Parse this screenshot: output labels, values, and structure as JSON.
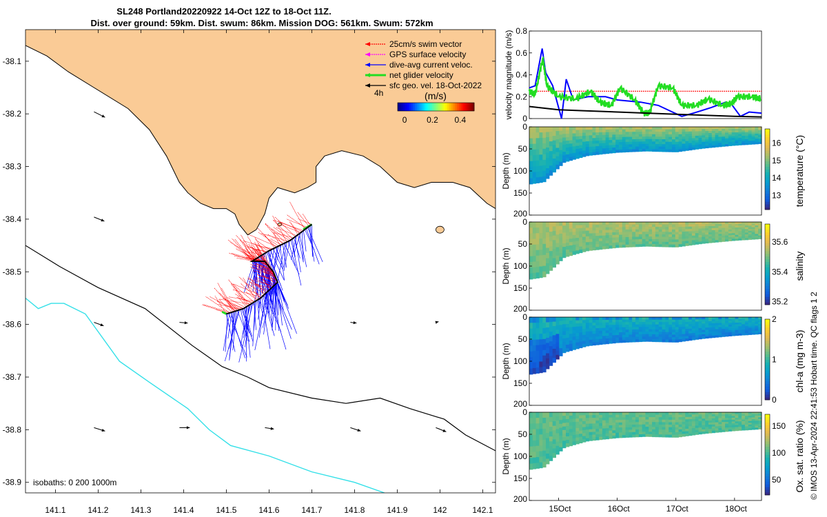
{
  "title": {
    "line1": "SL248 Portland20220922 14-Oct 12Z to 18-Oct 11Z.",
    "line2": "Dist. over ground: 59km. Dist. swum: 86km. Mission DOG: 561km. Swum: 572km"
  },
  "credit": "© IMOS 13-Apr-2024 22:41:53 Hobart time. QC flags 1  2",
  "colors": {
    "land": "#FACB96",
    "coast": "#000000",
    "isobath_200": "#000000",
    "isobath_1000": "#33E0E8",
    "swim_vector": "#FF0000",
    "gps_velocity": "#FF00FF",
    "dive_avg_current": "#0000FF",
    "net_glider": "#22DD22",
    "sfc_geo": "#000000"
  },
  "chart_data": [
    {
      "type": "map",
      "xlim": [
        141.03,
        142.13
      ],
      "ylim": [
        -38.92,
        -38.04
      ],
      "x_ticks": [
        141.1,
        141.2,
        141.3,
        141.4,
        141.5,
        141.6,
        141.7,
        141.8,
        141.9,
        142,
        142.1
      ],
      "x_tick_labels": [
        "141.1",
        "141.2",
        "141.3",
        "141.4",
        "141.5",
        "141.6",
        "141.7",
        "141.8",
        "141.9",
        "142",
        "142.1"
      ],
      "y_ticks": [
        -38.1,
        -38.2,
        -38.3,
        -38.4,
        -38.5,
        -38.6,
        -38.7,
        -38.8,
        -38.9
      ],
      "y_tick_labels": [
        "-38.1",
        "-38.2",
        "-38.3",
        "-38.4",
        "-38.5",
        "-38.6",
        "-38.7",
        "-38.8",
        "-38.9"
      ],
      "isobath_label": "isobaths: 0   200  1000m",
      "legend": [
        {
          "label": "25cm/s swim vector",
          "color": "#FF0000",
          "style": "dotted"
        },
        {
          "label": "GPS surface velocity",
          "color": "#FF00FF",
          "style": "dotted"
        },
        {
          "label": "dive-avg current veloc.",
          "color": "#0000FF",
          "style": "solid"
        },
        {
          "label": "net glider velocity",
          "color": "#22DD22",
          "style": "thick"
        },
        {
          "label": "sfc geo. vel. 18-Oct-2022",
          "color": "#000000",
          "style": "solid"
        }
      ],
      "time_step_label": "4h",
      "colorbar": {
        "label": "(m/s)",
        "ticks": [
          "0",
          "0.2",
          "0.4"
        ],
        "range": [
          -0.05,
          0.5
        ]
      },
      "coastline": [
        [
          141.03,
          -38.07
        ],
        [
          141.08,
          -38.09
        ],
        [
          141.13,
          -38.12
        ],
        [
          141.19,
          -38.15
        ],
        [
          141.27,
          -38.19
        ],
        [
          141.32,
          -38.23
        ],
        [
          141.36,
          -38.28
        ],
        [
          141.39,
          -38.33
        ],
        [
          141.41,
          -38.35
        ],
        [
          141.44,
          -38.37
        ],
        [
          141.47,
          -38.38
        ],
        [
          141.5,
          -38.38
        ],
        [
          141.52,
          -38.39
        ],
        [
          141.53,
          -38.41
        ],
        [
          141.55,
          -38.43
        ],
        [
          141.57,
          -38.42
        ],
        [
          141.59,
          -38.39
        ],
        [
          141.6,
          -38.36
        ],
        [
          141.62,
          -38.34
        ],
        [
          141.66,
          -38.35
        ],
        [
          141.69,
          -38.34
        ],
        [
          141.71,
          -38.33
        ],
        [
          141.71,
          -38.3
        ],
        [
          141.73,
          -38.28
        ],
        [
          141.77,
          -38.27
        ],
        [
          141.82,
          -38.28
        ],
        [
          141.86,
          -38.3
        ],
        [
          141.9,
          -38.33
        ],
        [
          141.94,
          -38.34
        ],
        [
          141.98,
          -38.33
        ],
        [
          142.03,
          -38.33
        ],
        [
          142.07,
          -38.34
        ],
        [
          142.11,
          -38.37
        ],
        [
          142.13,
          -38.38
        ]
      ],
      "isobath_200": [
        [
          141.03,
          -38.45
        ],
        [
          141.11,
          -38.49
        ],
        [
          141.2,
          -38.53
        ],
        [
          141.31,
          -38.57
        ],
        [
          141.42,
          -38.64
        ],
        [
          141.49,
          -38.68
        ],
        [
          141.55,
          -38.7
        ],
        [
          141.6,
          -38.72
        ],
        [
          141.7,
          -38.74
        ],
        [
          141.78,
          -38.75
        ],
        [
          141.86,
          -38.74
        ],
        [
          141.93,
          -38.76
        ],
        [
          142.01,
          -38.78
        ],
        [
          142.06,
          -38.81
        ],
        [
          142.13,
          -38.84
        ]
      ],
      "isobath_1000": [
        [
          141.03,
          -38.55
        ],
        [
          141.06,
          -38.57
        ],
        [
          141.09,
          -38.56
        ],
        [
          141.12,
          -38.56
        ],
        [
          141.17,
          -38.58
        ],
        [
          141.25,
          -38.67
        ],
        [
          141.32,
          -38.71
        ],
        [
          141.41,
          -38.76
        ],
        [
          141.46,
          -38.8
        ],
        [
          141.51,
          -38.83
        ],
        [
          141.6,
          -38.85
        ],
        [
          141.7,
          -38.88
        ],
        [
          141.8,
          -38.9
        ],
        [
          141.87,
          -38.92
        ]
      ],
      "glider_track": [
        [
          141.7,
          -38.41
        ],
        [
          141.65,
          -38.44
        ],
        [
          141.6,
          -38.46
        ],
        [
          141.56,
          -38.48
        ],
        [
          141.59,
          -38.48
        ],
        [
          141.61,
          -38.5
        ],
        [
          141.62,
          -38.52
        ],
        [
          141.58,
          -38.55
        ],
        [
          141.54,
          -38.57
        ],
        [
          141.5,
          -38.58
        ]
      ],
      "geo_vectors": [
        {
          "lon": 141.2,
          "lat": -38.2,
          "u": 0.16,
          "v": -0.08
        },
        {
          "lon": 141.2,
          "lat": -38.4,
          "u": 0.15,
          "v": -0.06
        },
        {
          "lon": 141.2,
          "lat": -38.6,
          "u": 0.14,
          "v": -0.05
        },
        {
          "lon": 141.4,
          "lat": -38.6,
          "u": 0.12,
          "v": -0.01
        },
        {
          "lon": 141.8,
          "lat": -38.6,
          "u": 0.09,
          "v": -0.01
        },
        {
          "lon": 142.0,
          "lat": -38.6,
          "u": 0.04,
          "v": 0.01
        },
        {
          "lon": 141.2,
          "lat": -38.8,
          "u": 0.16,
          "v": -0.05
        },
        {
          "lon": 141.4,
          "lat": -38.8,
          "u": 0.15,
          "v": 0.0
        },
        {
          "lon": 141.6,
          "lat": -38.8,
          "u": 0.13,
          "v": -0.02
        },
        {
          "lon": 141.8,
          "lat": -38.8,
          "u": 0.15,
          "v": -0.05
        },
        {
          "lon": 142.0,
          "lat": -38.8,
          "u": 0.15,
          "v": -0.06
        }
      ]
    },
    {
      "type": "line",
      "ylabel": "velocity magnitude (m/s)",
      "ylim": [
        0,
        0.8
      ],
      "y_tick_labels": [
        "0",
        "0.2",
        "0.4",
        "0.6",
        "0.8"
      ],
      "xlim": [
        14.5,
        18.46
      ],
      "series": [
        {
          "color": "#FF0000",
          "values": [
            [
              14.5,
              0.25
            ],
            [
              18.46,
              0.25
            ]
          ]
        },
        {
          "color": "#0000FF",
          "values": [
            [
              14.5,
              0.28
            ],
            [
              14.6,
              0.3
            ],
            [
              14.72,
              0.64
            ],
            [
              14.78,
              0.42
            ],
            [
              14.9,
              0.3
            ],
            [
              15.05,
              0.0
            ],
            [
              15.13,
              0.36
            ],
            [
              15.25,
              0.17
            ],
            [
              15.5,
              0.2
            ],
            [
              15.8,
              0.2
            ],
            [
              16.0,
              0.17
            ],
            [
              16.4,
              0.15
            ],
            [
              16.7,
              0.12
            ],
            [
              16.9,
              0.07
            ],
            [
              17.1,
              0.02
            ],
            [
              17.3,
              0.05
            ],
            [
              17.6,
              0.1
            ],
            [
              17.85,
              0.15
            ],
            [
              17.95,
              0.13
            ],
            [
              18.1,
              0.02
            ],
            [
              18.25,
              0.06
            ],
            [
              18.46,
              0.05
            ]
          ]
        },
        {
          "color": "#22DD22",
          "values": [
            [
              14.5,
              0.25
            ],
            [
              14.6,
              0.22
            ],
            [
              14.73,
              0.55
            ],
            [
              14.8,
              0.3
            ],
            [
              15.0,
              0.2
            ],
            [
              15.3,
              0.18
            ],
            [
              15.55,
              0.25
            ],
            [
              15.7,
              0.15
            ],
            [
              15.9,
              0.12
            ],
            [
              16.05,
              0.28
            ],
            [
              16.3,
              0.17
            ],
            [
              16.45,
              0.05
            ],
            [
              16.55,
              0.05
            ],
            [
              16.7,
              0.3
            ],
            [
              16.95,
              0.28
            ],
            [
              17.1,
              0.12
            ],
            [
              17.35,
              0.12
            ],
            [
              17.55,
              0.18
            ],
            [
              17.8,
              0.12
            ],
            [
              17.95,
              0.14
            ],
            [
              18.05,
              0.2
            ],
            [
              18.3,
              0.2
            ],
            [
              18.46,
              0.18
            ]
          ]
        },
        {
          "color": "#000000",
          "values": [
            [
              14.5,
              0.11
            ],
            [
              15.0,
              0.08
            ],
            [
              15.5,
              0.07
            ],
            [
              16.0,
              0.06
            ],
            [
              16.5,
              0.05
            ],
            [
              17.0,
              0.04
            ],
            [
              17.5,
              0.03
            ],
            [
              18.0,
              0.02
            ],
            [
              18.46,
              0.015
            ]
          ]
        }
      ]
    },
    {
      "type": "heatmap",
      "ylabel": "Depth (m)",
      "ylim": [
        200,
        0
      ],
      "y_tick_labels": [
        "0",
        "50",
        "100",
        "150",
        "200"
      ],
      "cbar_label": "temperature (°C)",
      "cbar_ticks": [
        "13",
        "14",
        "15",
        "16"
      ],
      "cbar_range": [
        12.2,
        16.8
      ],
      "colormap": "parula",
      "surface_value": 15.3,
      "deep_value": 13.6,
      "bottom_depth": [
        [
          14.5,
          130
        ],
        [
          14.75,
          125
        ],
        [
          15.1,
          80
        ],
        [
          15.5,
          65
        ],
        [
          16.0,
          58
        ],
        [
          16.5,
          55
        ],
        [
          17.0,
          57
        ],
        [
          17.5,
          48
        ],
        [
          18.0,
          42
        ],
        [
          18.46,
          38
        ]
      ]
    },
    {
      "type": "heatmap",
      "ylabel": "Depth (m)",
      "ylim": [
        200,
        0
      ],
      "y_tick_labels": [
        "0",
        "50",
        "100",
        "150",
        "200"
      ],
      "cbar_label": "salinity",
      "cbar_ticks": [
        "35.2",
        "35.4",
        "35.6"
      ],
      "cbar_range": [
        35.18,
        35.72
      ],
      "colormap": "parula",
      "surface_value": 35.55,
      "deep_value": 35.48,
      "bottom_depth": [
        [
          14.5,
          130
        ],
        [
          14.75,
          125
        ],
        [
          15.1,
          80
        ],
        [
          15.5,
          65
        ],
        [
          16.0,
          58
        ],
        [
          16.5,
          55
        ],
        [
          17.0,
          57
        ],
        [
          17.5,
          48
        ],
        [
          18.0,
          42
        ],
        [
          18.46,
          38
        ]
      ]
    },
    {
      "type": "heatmap",
      "ylabel": "Depth (m)",
      "ylim": [
        200,
        0
      ],
      "y_tick_labels": [
        "0",
        "50",
        "100",
        "150",
        "200"
      ],
      "cbar_label": "chl-a (mg m-3)",
      "cbar_ticks": [
        "0",
        "1",
        "2"
      ],
      "cbar_range": [
        0,
        2
      ],
      "colormap": "parula",
      "surface_value": 0.9,
      "deep_value": 0.45,
      "bottom_depth": [
        [
          14.5,
          130
        ],
        [
          14.75,
          125
        ],
        [
          15.1,
          80
        ],
        [
          15.5,
          65
        ],
        [
          16.0,
          58
        ],
        [
          16.5,
          55
        ],
        [
          17.0,
          57
        ],
        [
          17.5,
          48
        ],
        [
          18.0,
          42
        ],
        [
          18.46,
          38
        ]
      ]
    },
    {
      "type": "heatmap",
      "ylabel": "Depth (m)",
      "ylim": [
        200,
        0
      ],
      "y_tick_labels": [
        "0",
        "50",
        "100",
        "150",
        "200"
      ],
      "cbar_label": "Ox. sat. ratio (%)",
      "cbar_ticks": [
        "50",
        "100",
        "150"
      ],
      "cbar_range": [
        22,
        172
      ],
      "colormap": "parula",
      "surface_value": 108,
      "deep_value": 102,
      "bottom_depth": [
        [
          14.5,
          130
        ],
        [
          14.75,
          125
        ],
        [
          15.1,
          80
        ],
        [
          15.5,
          65
        ],
        [
          16.0,
          58
        ],
        [
          16.5,
          55
        ],
        [
          17.0,
          57
        ],
        [
          17.5,
          48
        ],
        [
          18.0,
          42
        ],
        [
          18.46,
          38
        ]
      ],
      "x_tick_labels": [
        "15Oct",
        "16Oct",
        "17Oct",
        "18Oct"
      ],
      "x_ticks": [
        15,
        16,
        17,
        18
      ]
    }
  ]
}
